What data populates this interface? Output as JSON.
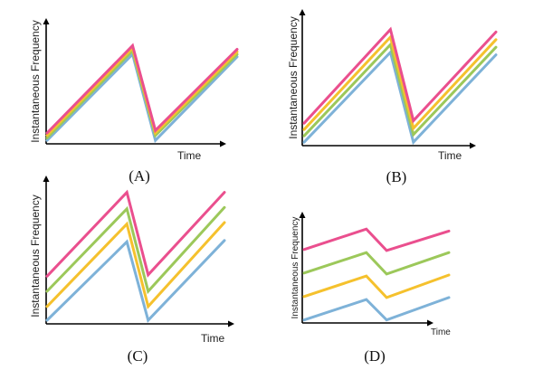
{
  "colors": {
    "pink": "#ea4f8e",
    "green": "#9cc85a",
    "yellow": "#f5c12d",
    "blue": "#7eb2d8"
  },
  "chart_data": [
    {
      "type": "line",
      "panel_label": "(A)",
      "title": "",
      "xlabel": "Time",
      "ylabel": "Instantaneous Frequency",
      "x": [
        0,
        0.45,
        0.57,
        1.0
      ],
      "xlim": [
        0,
        1
      ],
      "ylim": [
        0,
        1
      ],
      "series": [
        {
          "name": "pink",
          "color": "#ea4f8e",
          "values": [
            0.08,
            0.78,
            0.1,
            0.75
          ]
        },
        {
          "name": "yellow",
          "color": "#f5c12d",
          "values": [
            0.06,
            0.76,
            0.08,
            0.73
          ]
        },
        {
          "name": "green",
          "color": "#9cc85a",
          "values": [
            0.04,
            0.74,
            0.06,
            0.71
          ]
        },
        {
          "name": "blue",
          "color": "#7eb2d8",
          "values": [
            0.02,
            0.71,
            0.02,
            0.69
          ]
        }
      ]
    },
    {
      "type": "line",
      "panel_label": "(B)",
      "title": "",
      "xlabel": "Time",
      "ylabel": "Instantaneous Frequency",
      "x": [
        0,
        0.45,
        0.57,
        1.0
      ],
      "xlim": [
        0,
        1
      ],
      "ylim": [
        0,
        1
      ],
      "series": [
        {
          "name": "pink",
          "color": "#ea4f8e",
          "values": [
            0.17,
            0.91,
            0.19,
            0.89
          ]
        },
        {
          "name": "yellow",
          "color": "#f5c12d",
          "values": [
            0.12,
            0.85,
            0.13,
            0.83
          ]
        },
        {
          "name": "green",
          "color": "#9cc85a",
          "values": [
            0.07,
            0.79,
            0.08,
            0.77
          ]
        },
        {
          "name": "blue",
          "color": "#7eb2d8",
          "values": [
            0.02,
            0.73,
            0.02,
            0.71
          ]
        }
      ]
    },
    {
      "type": "line",
      "panel_label": "(C)",
      "title": "",
      "xlabel": "Time",
      "ylabel": "Instantaneous Frequency",
      "x": [
        0,
        0.45,
        0.57,
        1.0
      ],
      "xlim": [
        0,
        1
      ],
      "ylim": [
        0,
        1
      ],
      "series": [
        {
          "name": "pink",
          "color": "#ea4f8e",
          "values": [
            0.34,
            0.95,
            0.35,
            0.95
          ]
        },
        {
          "name": "green",
          "color": "#9cc85a",
          "values": [
            0.23,
            0.83,
            0.23,
            0.84
          ]
        },
        {
          "name": "yellow",
          "color": "#f5c12d",
          "values": [
            0.12,
            0.72,
            0.12,
            0.73
          ]
        },
        {
          "name": "blue",
          "color": "#7eb2d8",
          "values": [
            0.02,
            0.59,
            0.02,
            0.6
          ]
        }
      ]
    },
    {
      "type": "line",
      "panel_label": "(D)",
      "title": "",
      "xlabel": "Time",
      "ylabel": "Instantaneous Frequency",
      "x": [
        0,
        0.43,
        0.57,
        1.0
      ],
      "xlim": [
        0,
        1
      ],
      "ylim": [
        0,
        1
      ],
      "series": [
        {
          "name": "pink",
          "color": "#ea4f8e",
          "values": [
            0.71,
            0.91,
            0.7,
            0.89
          ]
        },
        {
          "name": "green",
          "color": "#9cc85a",
          "values": [
            0.48,
            0.68,
            0.47,
            0.68
          ]
        },
        {
          "name": "yellow",
          "color": "#f5c12d",
          "values": [
            0.25,
            0.45,
            0.24,
            0.46
          ]
        },
        {
          "name": "blue",
          "color": "#7eb2d8",
          "values": [
            0.02,
            0.22,
            0.02,
            0.24
          ]
        }
      ]
    }
  ]
}
